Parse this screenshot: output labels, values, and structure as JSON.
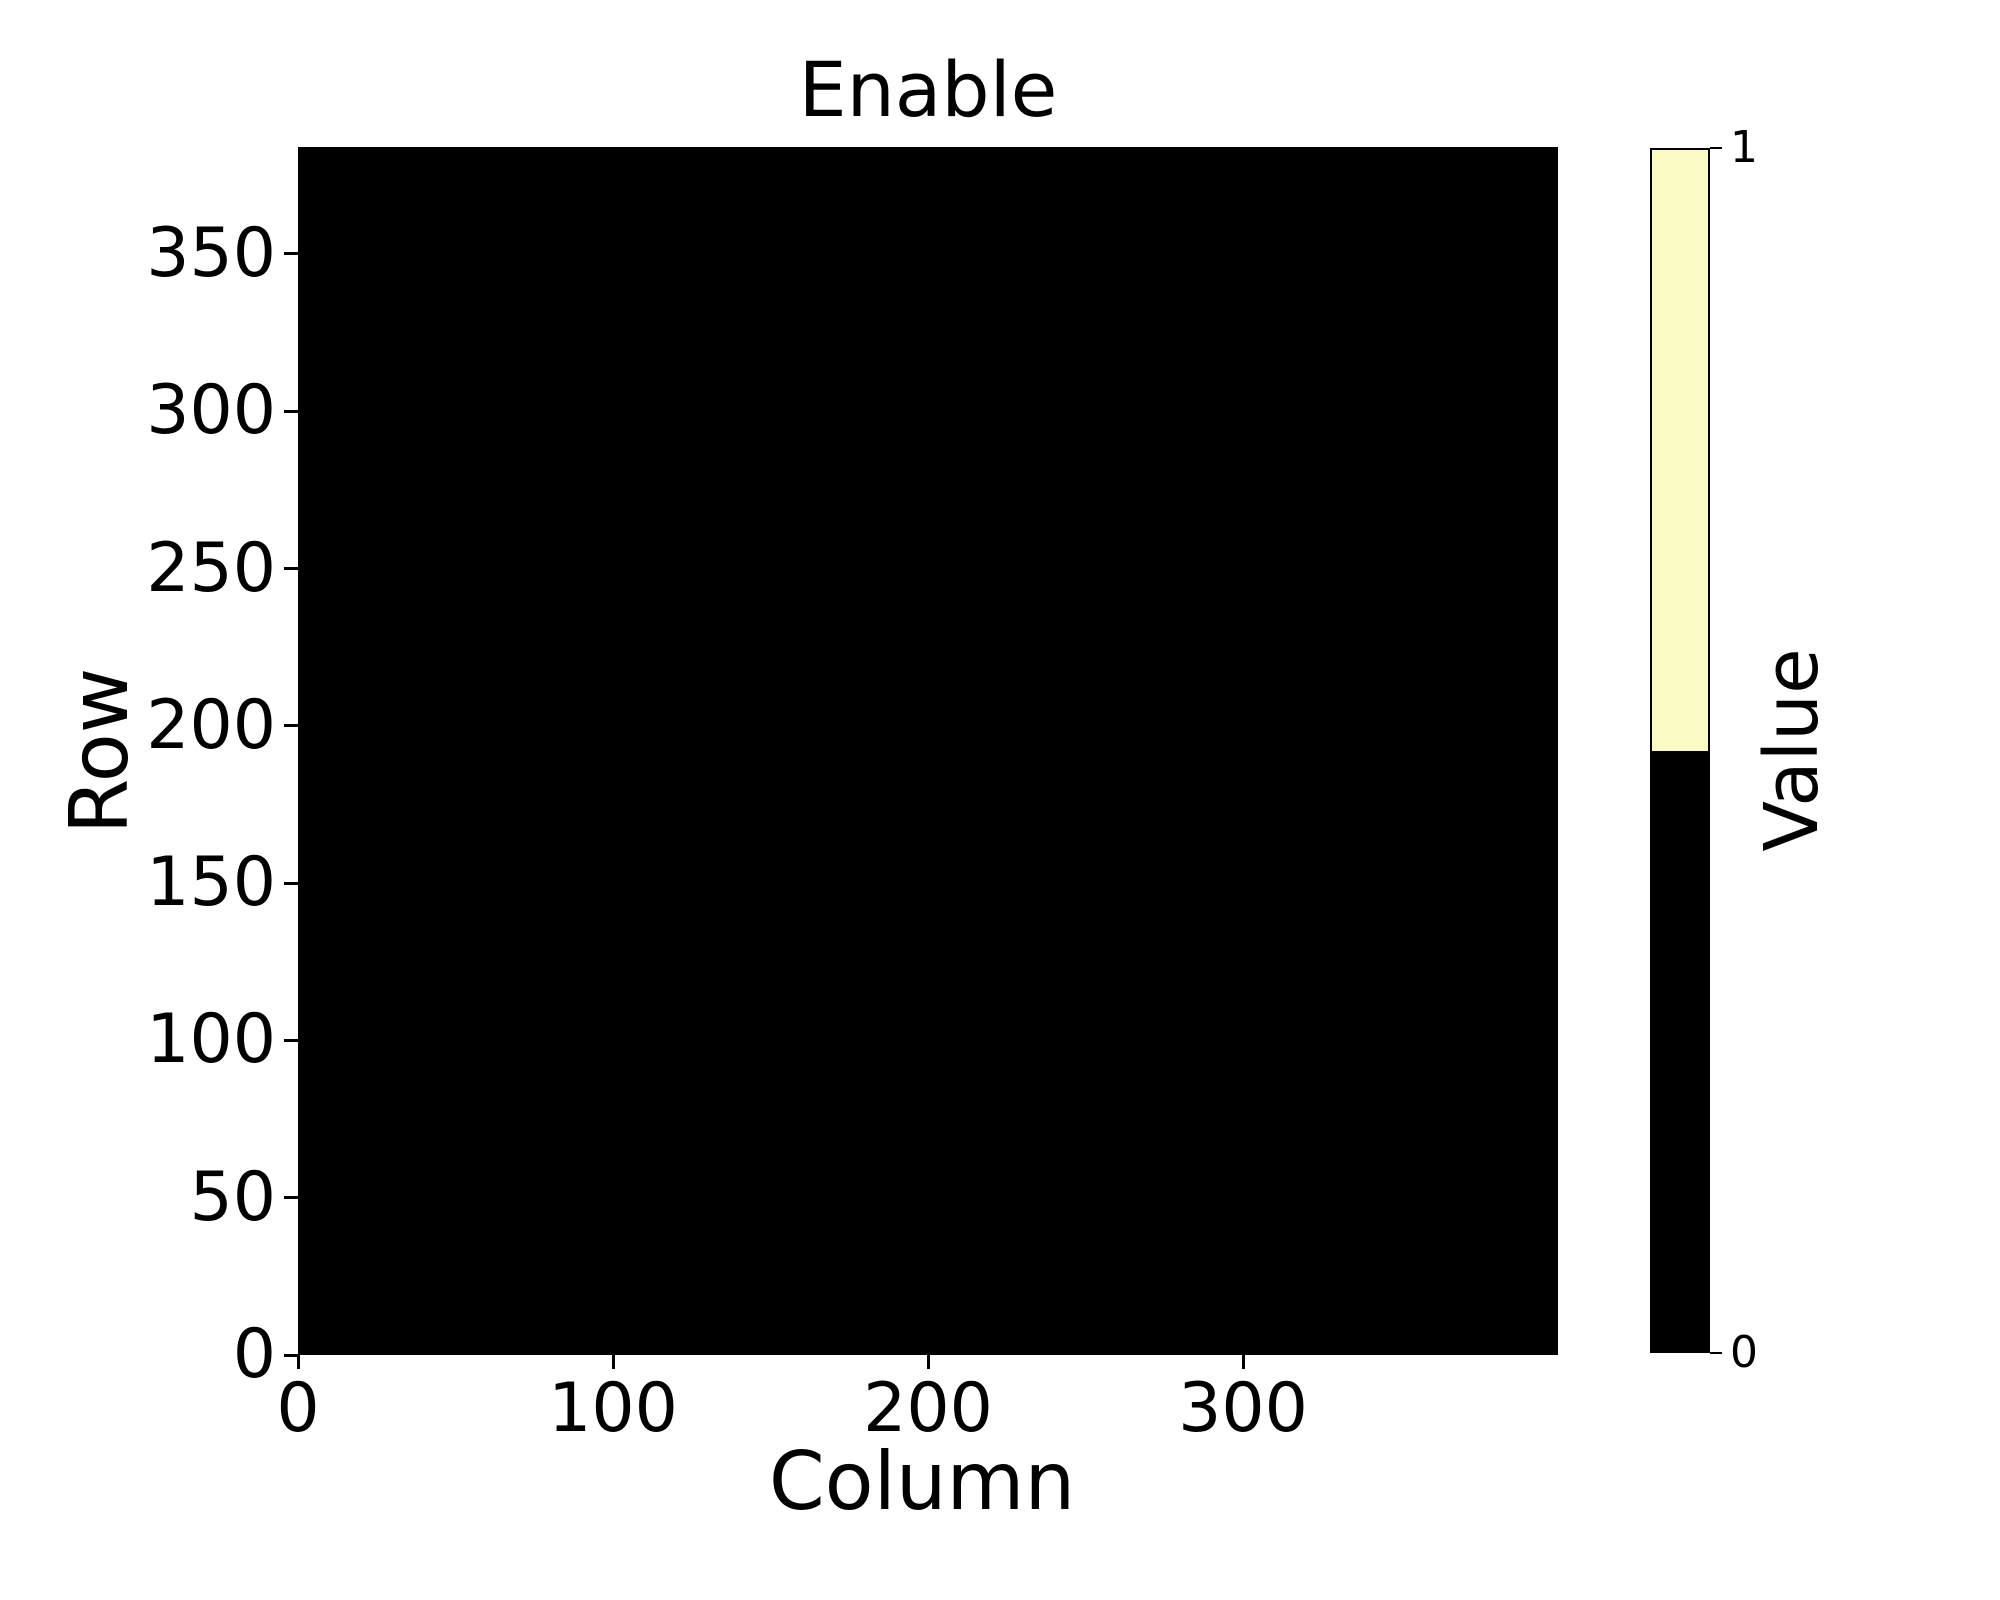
{
  "figure": {
    "background": "#ffffff"
  },
  "chart_data": {
    "type": "heatmap",
    "title": "Enable",
    "xlabel": "Column",
    "ylabel": "Row",
    "xlim": [
      0,
      400
    ],
    "ylim": [
      0,
      384
    ],
    "xticks": [
      0,
      100,
      200,
      300
    ],
    "yticks": [
      0,
      50,
      100,
      150,
      200,
      250,
      300,
      350
    ],
    "origin": "lower",
    "grid": false,
    "uniform_value": 0,
    "values_summary": "all cells equal 0 (entire heatmap area is black)",
    "value_range": [
      0,
      1
    ],
    "colormap": {
      "0": "#000000",
      "1": "#FBFCC5"
    },
    "colorbar": {
      "label": "Value",
      "ticks": [
        0,
        1
      ],
      "position": "right",
      "segments": [
        {
          "value": 1,
          "color": "#FBFCC5",
          "span": [
            0.5,
            1.0
          ]
        },
        {
          "value": 0,
          "color": "#000000",
          "span": [
            0.0,
            0.5
          ]
        }
      ]
    }
  }
}
